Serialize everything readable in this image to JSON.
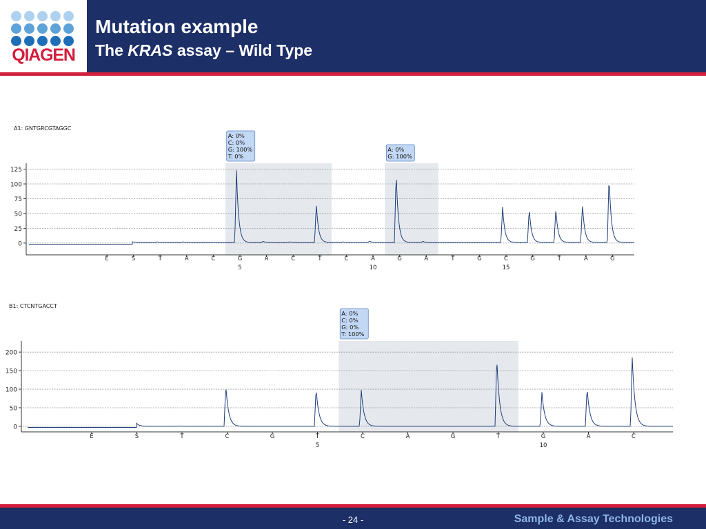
{
  "brand": {
    "logo_text": "QIAGEN",
    "colors": {
      "navy": "#1c2f66",
      "red": "#d21f3c",
      "dot_light": "#aed1ef",
      "dot_mid": "#5ea3d8",
      "dot_dark": "#1f6fb8"
    }
  },
  "header": {
    "title": "Mutation example",
    "subtitle_pre": "The ",
    "subtitle_em": "KRAS",
    "subtitle_post": " assay – Wild Type"
  },
  "footer": {
    "page": "- 24 -",
    "tagline": "Sample & Assay Technologies"
  },
  "chart_data": [
    {
      "type": "line",
      "label": "A1: GNTGRCGTAGGC",
      "ylim": [
        -20,
        135
      ],
      "yticks": [
        0,
        25,
        50,
        75,
        100,
        125
      ],
      "baseline": 1,
      "grid": true,
      "line_color": "#1f3f7a",
      "dispensations": [
        "E",
        "S",
        "T",
        "A",
        "C",
        "G",
        "A",
        "C",
        "T",
        "C",
        "A",
        "G",
        "A",
        "T",
        "G",
        "C",
        "G",
        "T",
        "A",
        "G"
      ],
      "position_labels": [
        {
          "index": 6,
          "label": "5"
        },
        {
          "index": 11,
          "label": "10"
        },
        {
          "index": 16,
          "label": "15"
        }
      ],
      "peaks": [
        0,
        3,
        1,
        1,
        0,
        122,
        2,
        1,
        66,
        1,
        2,
        120,
        2,
        0,
        0,
        60,
        58,
        57,
        65,
        114
      ],
      "highlights": [
        {
          "from": 5,
          "to": 8,
          "box_at": 5,
          "lines": [
            "A: 0%",
            "C: 0%",
            "G: 100%",
            "T: 0%"
          ]
        },
        {
          "from": 11,
          "to": 12,
          "box_at": 11,
          "lines": [
            "A: 0%",
            "G: 100%"
          ]
        }
      ]
    },
    {
      "type": "line",
      "label": "B1: CTCNTGACCT",
      "ylim": [
        -15,
        230
      ],
      "yticks": [
        0,
        50,
        100,
        150,
        200
      ],
      "baseline": 0,
      "grid": true,
      "line_color": "#1f3f7a",
      "dispensations": [
        "E",
        "S",
        "T",
        "C",
        "G",
        "T",
        "C",
        "A",
        "G",
        "T",
        "G",
        "A",
        "C"
      ],
      "position_labels": [
        {
          "index": 6,
          "label": "5"
        },
        {
          "index": 11,
          "label": "10"
        }
      ],
      "peaks": [
        0,
        12,
        1,
        112,
        0,
        103,
        98,
        0,
        0,
        188,
        92,
        105,
        185
      ],
      "highlights": [
        {
          "from": 6,
          "to": 9,
          "box_at": 6,
          "lines": [
            "A: 0%",
            "C: 0%",
            "G: 0%",
            "T: 100%"
          ]
        }
      ]
    }
  ]
}
